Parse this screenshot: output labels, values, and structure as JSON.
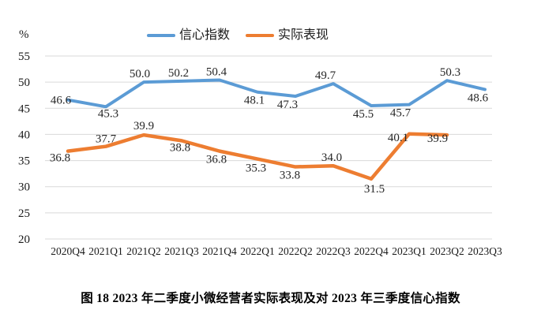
{
  "chart_data": {
    "type": "line",
    "title": "图 18  2023 年二季度小微经营者实际表现及对 2023 年三季度信心指数",
    "ylabel": "%",
    "xlabel": "",
    "categories": [
      "2020Q4",
      "2021Q1",
      "2021Q2",
      "2021Q3",
      "2021Q4",
      "2022Q1",
      "2022Q2",
      "2022Q3",
      "2022Q4",
      "2023Q1",
      "2023Q2",
      "2023Q3"
    ],
    "y_ticks": [
      55,
      50,
      45,
      40,
      35,
      30,
      25,
      20
    ],
    "ylim": [
      20,
      55
    ],
    "grid": true,
    "grid_color": "#D9D9D9",
    "axis_text_color": "#1a1a1a",
    "data_label_color": "#262626",
    "legend_position": "top",
    "series": [
      {
        "key": "confidence-index",
        "name": "信心指数",
        "color": "#5B9BD5",
        "stroke_width": 4,
        "values": [
          46.6,
          45.3,
          50.0,
          50.2,
          50.4,
          48.1,
          47.3,
          49.7,
          45.5,
          45.7,
          50.3,
          48.6
        ],
        "label_offsets": [
          [
            -9,
            5
          ],
          [
            3,
            13
          ],
          [
            -5,
            -6
          ],
          [
            -4,
            -6
          ],
          [
            -4,
            -6
          ],
          [
            -4,
            15
          ],
          [
            -10,
            15
          ],
          [
            -10,
            -6
          ],
          [
            -10,
            15
          ],
          [
            -11,
            15
          ],
          [
            4,
            -6
          ],
          [
            -9,
            15
          ]
        ]
      },
      {
        "key": "actual-performance",
        "name": "实际表现",
        "color": "#ED7D31",
        "stroke_width": 4.5,
        "values": [
          36.8,
          37.7,
          39.9,
          38.8,
          36.8,
          35.3,
          33.8,
          34.0,
          31.5,
          40.1,
          39.9
        ],
        "label_offsets": [
          [
            -10,
            13
          ],
          [
            0,
            -5
          ],
          [
            0,
            -7
          ],
          [
            -2,
            13
          ],
          [
            -4,
            15
          ],
          [
            -2,
            16
          ],
          [
            -7,
            15
          ],
          [
            -2,
            -6
          ],
          [
            4,
            17
          ],
          [
            -14,
            9
          ],
          [
            -12,
            9
          ]
        ]
      }
    ]
  }
}
